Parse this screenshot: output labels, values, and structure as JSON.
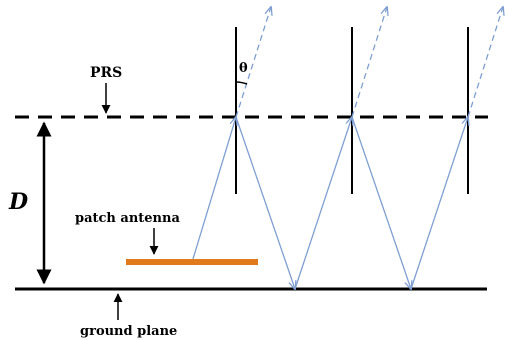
{
  "labels": {
    "prs": "PRS",
    "theta": "θ",
    "distance": "D",
    "patch_antenna": "patch antenna",
    "ground_plane": "ground plane"
  },
  "colors": {
    "ray": "#7f9fd3",
    "patch": "#e07a1a",
    "line": "#000000"
  }
}
